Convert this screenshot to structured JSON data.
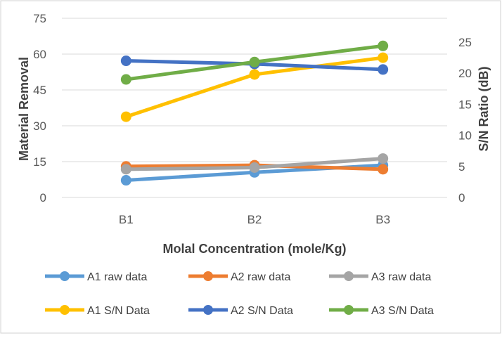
{
  "chart_data": {
    "type": "line",
    "categories": [
      "B1",
      "B2",
      "B3"
    ],
    "xlabel": "Molal Concentration (mole/Kg)",
    "ylabel": "Material Removal",
    "y2label": "S/N Ratio (dB)",
    "ylim": [
      0,
      75
    ],
    "yticks": [
      0,
      15,
      30,
      45,
      60,
      75
    ],
    "y2lim": [
      0,
      25
    ],
    "y2ticks": [
      0,
      5,
      10,
      15,
      20,
      25
    ],
    "grid": true,
    "legend_position": "bottom",
    "series": [
      {
        "name": "A1 raw data",
        "axis": "left",
        "color": "#5b9bd5",
        "values": [
          7.2,
          10.5,
          13.5
        ]
      },
      {
        "name": "A2 raw data",
        "axis": "left",
        "color": "#ed7d31",
        "values": [
          13.0,
          13.5,
          11.8
        ]
      },
      {
        "name": "A3 raw data",
        "axis": "left",
        "color": "#a5a5a5",
        "values": [
          11.8,
          12.5,
          16.3
        ]
      },
      {
        "name": "A1 S/N Data",
        "axis": "right",
        "color": "#ffc000",
        "values": [
          13.0,
          19.8,
          22.5
        ]
      },
      {
        "name": "A2  S/N Data",
        "axis": "right",
        "color": "#4472c4",
        "values": [
          22.0,
          21.5,
          20.6
        ]
      },
      {
        "name": "A3  S/N Data",
        "axis": "right",
        "color": "#70ad47",
        "values": [
          19.0,
          21.8,
          24.4
        ]
      }
    ]
  }
}
